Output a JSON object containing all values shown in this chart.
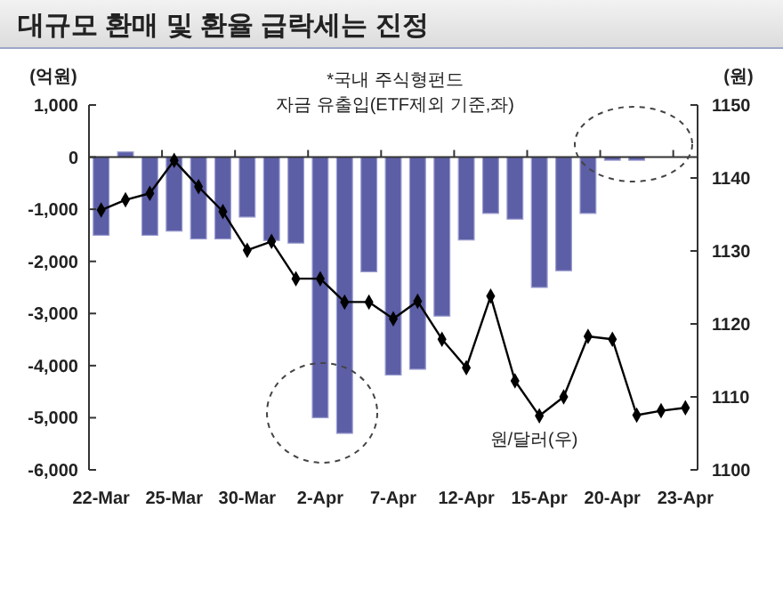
{
  "chart_data": {
    "type": "bar",
    "title": "대규모 환매 및 환율 급락세는 진정",
    "ylabel": "(억원)",
    "y2label": "(원)",
    "categories": [
      "22-Mar",
      null,
      null,
      "25-Mar",
      null,
      null,
      "30-Mar",
      null,
      null,
      "2-Apr",
      null,
      null,
      "7-Apr",
      null,
      null,
      "12-Apr",
      null,
      null,
      "15-Apr",
      null,
      null,
      "20-Apr",
      null,
      null,
      "23-Apr"
    ],
    "series": [
      {
        "color": "#5c5ea6",
        "values": [
          -1500,
          100,
          -1500,
          -1420,
          -1570,
          -1570,
          -1150,
          -1600,
          -1650,
          -5000,
          -5300,
          -2200,
          -4180,
          -4070,
          -3050,
          -1590,
          -1080,
          -1190,
          -2500,
          -2180,
          -1080,
          -60,
          -60,
          0,
          0
        ]
      },
      {
        "type": "line",
        "axis": "y2",
        "color": "#000000",
        "marker": "diamond",
        "values": [
          1135.6,
          1137,
          1137.9,
          1142.4,
          1138.8,
          1135.4,
          1130.1,
          1131.3,
          1126.2,
          1126.2,
          1123,
          1123,
          1120.7,
          1123.1,
          1117.9,
          1114,
          1123.8,
          1112.2,
          1107.4,
          1110,
          1118.3,
          1117.9,
          1107.5,
          1108.1,
          1108.5
        ]
      }
    ],
    "ylim": [
      -6000,
      1000
    ],
    "yticks": [
      {
        "value": 1000,
        "label": "1,000"
      },
      0,
      {
        "value": -1000,
        "label": "-1,000"
      },
      {
        "value": -2000,
        "label": "-2,000"
      },
      {
        "value": -3000,
        "label": "-3,000"
      },
      {
        "value": -4000,
        "label": "-4,000"
      },
      {
        "value": -5000,
        "label": "-5,000"
      },
      {
        "value": -6000,
        "label": "-6,000"
      }
    ],
    "y2lim": [
      1100,
      1150
    ],
    "y2ticks": [
      1100,
      1110,
      1120,
      1130,
      1140,
      1150
    ],
    "annotations": [
      "*국내 주식형펀드",
      "자금 유출입(ETF제외 기준,좌)",
      "원/달러(우)"
    ]
  }
}
